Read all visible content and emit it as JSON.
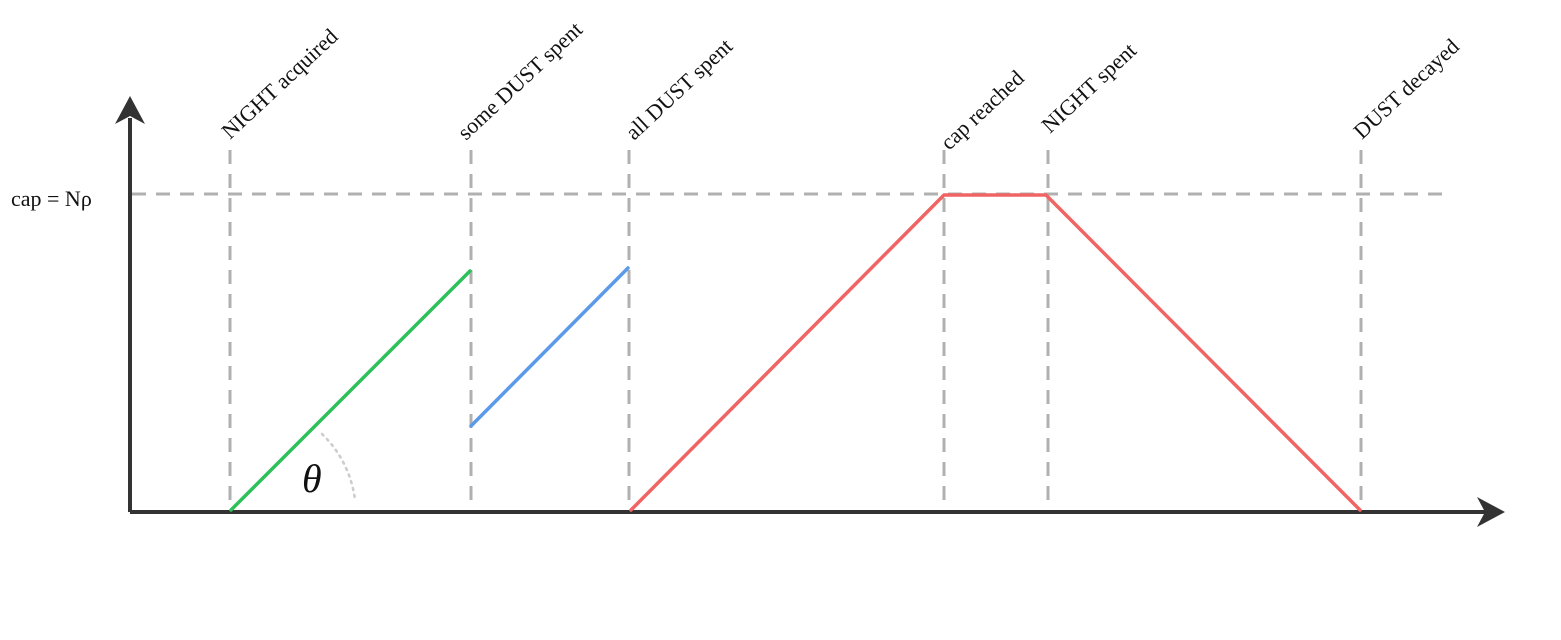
{
  "events": [
    {
      "id": "night-acquired",
      "label": "NIGHT acquired"
    },
    {
      "id": "some-dust-spent",
      "label": "some DUST spent"
    },
    {
      "id": "all-dust-spent",
      "label": "all DUST spent"
    },
    {
      "id": "cap-reached",
      "label": "cap reached"
    },
    {
      "id": "night-spent",
      "label": "NIGHT spent"
    },
    {
      "id": "dust-decayed",
      "label": "DUST decayed"
    }
  ],
  "cap_label": "cap = Nρ",
  "angle_label": "θ",
  "colors": {
    "generation": "#2ec15a",
    "after_spend": "#5b9aea",
    "regeneration_decay": "#f06464",
    "guides": "#b0b0b0",
    "axes": "#333333"
  }
}
